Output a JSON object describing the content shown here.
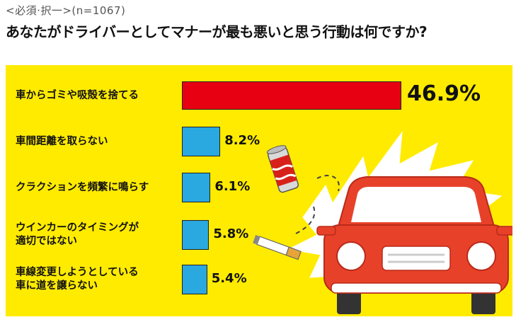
{
  "header": {
    "subtitle": "<必須·択一>(n=1067)",
    "title": "あなたがドライバーとしてマナーが最も悪いと思う行動は何ですか?"
  },
  "colors": {
    "background_panel": "#ffeb00",
    "burst": "#ffffff",
    "bar_highlight": "#e60012",
    "bar_default": "#2aa8e0",
    "car_body": "#e8412a"
  },
  "chart_data": {
    "type": "bar",
    "orientation": "horizontal",
    "categories": [
      "車からゴミや吸殻を捨てる",
      "車間距離を取らない",
      "クラクションを頻繁に鳴らす",
      "ウインカーのタイミングが\n適切ではない",
      "車線変更しようとしている\n車に道を譲らない"
    ],
    "values": [
      46.9,
      8.2,
      6.1,
      5.8,
      5.4
    ],
    "value_labels": [
      "46.9%",
      "8.2%",
      "6.1%",
      "5.8%",
      "5.4%"
    ],
    "unit": "%",
    "highlight_index": 0,
    "xlim": [
      0,
      50
    ],
    "grid": false,
    "legend": "none"
  },
  "illustrations": [
    "soda-can-icon",
    "cigarette-icon",
    "car-icon",
    "burst-shape"
  ]
}
